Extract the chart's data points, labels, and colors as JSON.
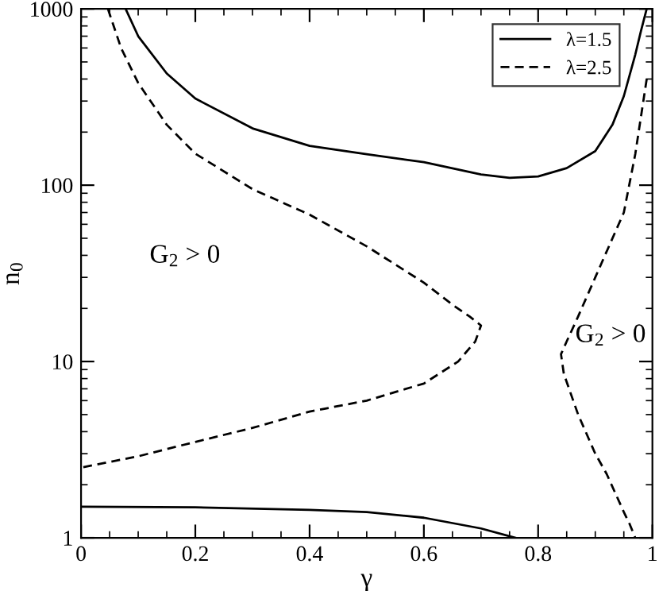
{
  "chart_data": {
    "type": "line",
    "xlabel": "γ",
    "ylabel": "n$_{0}$",
    "xlim": [
      0,
      1
    ],
    "ylim": [
      1,
      1000
    ],
    "xticks": [
      0,
      0.2,
      0.4,
      0.6,
      0.8,
      1
    ],
    "yticks": [
      1,
      10,
      100,
      1000
    ],
    "log": "y",
    "grid": false,
    "legend": "top right",
    "series": [
      {
        "name": "λ=1.5",
        "color": "#000000",
        "line_style": "solid",
        "x": [
          0.078,
          0.1,
          0.15,
          0.2,
          0.3,
          0.4,
          0.5,
          0.6,
          0.7,
          0.75,
          0.8,
          0.85,
          0.9,
          0.93,
          0.95,
          0.97,
          0.98,
          0.99,
          null,
          0,
          0.2,
          0.4,
          0.5,
          0.6,
          0.7,
          0.76
        ],
        "values": [
          1000,
          700,
          430,
          310,
          210,
          167,
          150,
          135,
          115,
          110,
          112,
          125,
          156,
          220,
          320,
          550,
          750,
          1000,
          null,
          1.5,
          1.49,
          1.44,
          1.4,
          1.3,
          1.13,
          1.0
        ]
      },
      {
        "name": "λ=2.5",
        "color": "#000000",
        "line_style": "dashed",
        "x": [
          0.047,
          0.07,
          0.1,
          0.15,
          0.2,
          0.3,
          0.4,
          0.5,
          0.6,
          0.65,
          0.68,
          0.7,
          0.69,
          0.66,
          0.6,
          0.5,
          0.4,
          0.3,
          0.2,
          0.1,
          0,
          null,
          0.99,
          0.97,
          0.95,
          0.9,
          0.87,
          0.85,
          0.84,
          0.845,
          0.87,
          0.9,
          0.92,
          0.95,
          0.96,
          0.97
        ],
        "values": [
          1000,
          600,
          380,
          220,
          151,
          95,
          68,
          45,
          28,
          21,
          18,
          16,
          13,
          10,
          7.5,
          6,
          5.2,
          4.2,
          3.5,
          2.9,
          2.5,
          null,
          400,
          150,
          70,
          30,
          18,
          13,
          11,
          8.5,
          5,
          3,
          2.3,
          1.4,
          1.2,
          1.0
        ]
      }
    ],
    "annotations": [
      "G$_{2}$ > 0",
      "G$_{2}$ > 0"
    ]
  }
}
